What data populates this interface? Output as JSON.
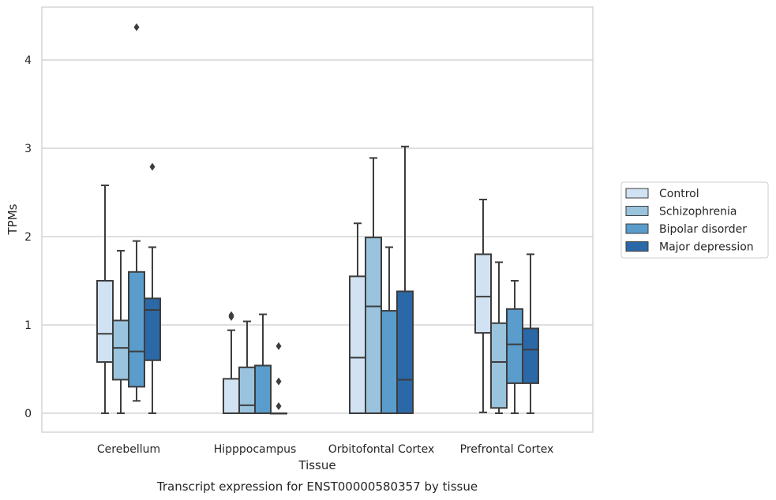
{
  "chart_data": {
    "type": "box",
    "title": "",
    "caption": "Transcript expression for ENST00000580357 by tissue",
    "xlabel": "Tissue",
    "ylabel": "TPMs",
    "ylim": [
      -0.2,
      4.6
    ],
    "yticks": [
      0,
      1,
      2,
      3,
      4
    ],
    "grid": "horizontal",
    "legend_position": "right",
    "categories": [
      "Cerebellum",
      "Hipppocampus",
      "Orbitofontal Cortex",
      "Prefrontal Cortex"
    ],
    "series": [
      {
        "name": "Control",
        "color": "#d1e2f2",
        "boxes": [
          {
            "whislo": 0.0,
            "q1": 0.58,
            "med": 0.9,
            "q3": 1.5,
            "whishi": 2.58,
            "fliers": []
          },
          {
            "whislo": 0.0,
            "q1": 0.0,
            "med": 0.0,
            "q3": 0.39,
            "whishi": 0.94,
            "fliers": [
              1.09,
              1.11
            ]
          },
          {
            "whislo": 0.0,
            "q1": 0.0,
            "med": 0.63,
            "q3": 1.55,
            "whishi": 2.15,
            "fliers": []
          },
          {
            "whislo": 0.01,
            "q1": 0.91,
            "med": 1.32,
            "q3": 1.8,
            "whishi": 2.42,
            "fliers": []
          }
        ]
      },
      {
        "name": "Schizophrenia",
        "color": "#9ac3dd",
        "boxes": [
          {
            "whislo": 0.0,
            "q1": 0.38,
            "med": 0.74,
            "q3": 1.05,
            "whishi": 1.84,
            "fliers": []
          },
          {
            "whislo": 0.0,
            "q1": 0.0,
            "med": 0.09,
            "q3": 0.52,
            "whishi": 1.04,
            "fliers": []
          },
          {
            "whislo": 0.0,
            "q1": 0.0,
            "med": 1.21,
            "q3": 1.99,
            "whishi": 2.89,
            "fliers": []
          },
          {
            "whislo": 0.0,
            "q1": 0.06,
            "med": 0.58,
            "q3": 1.02,
            "whishi": 1.71,
            "fliers": []
          }
        ]
      },
      {
        "name": "Bipolar disorder",
        "color": "#5a9ccb",
        "boxes": [
          {
            "whislo": 0.14,
            "q1": 0.3,
            "med": 0.7,
            "q3": 1.6,
            "whishi": 1.95,
            "fliers": [
              4.37
            ]
          },
          {
            "whislo": 0.0,
            "q1": 0.0,
            "med": 0.0,
            "q3": 0.54,
            "whishi": 1.12,
            "fliers": []
          },
          {
            "whislo": 0.0,
            "q1": 0.0,
            "med": 0.0,
            "q3": 1.16,
            "whishi": 1.88,
            "fliers": []
          },
          {
            "whislo": 0.0,
            "q1": 0.34,
            "med": 0.78,
            "q3": 1.18,
            "whishi": 1.5,
            "fliers": []
          }
        ]
      },
      {
        "name": "Major depression",
        "color": "#2b68a7",
        "boxes": [
          {
            "whislo": 0.0,
            "q1": 0.6,
            "med": 1.17,
            "q3": 1.3,
            "whishi": 1.88,
            "fliers": [
              2.79
            ]
          },
          {
            "whislo": 0.0,
            "q1": 0.0,
            "med": 0.0,
            "q3": 0.0,
            "whishi": 0.0,
            "fliers": [
              0.76,
              0.36,
              0.08
            ]
          },
          {
            "whislo": 0.0,
            "q1": 0.0,
            "med": 0.38,
            "q3": 1.38,
            "whishi": 3.02,
            "fliers": []
          },
          {
            "whislo": 0.0,
            "q1": 0.34,
            "med": 0.72,
            "q3": 0.96,
            "whishi": 1.8,
            "fliers": []
          }
        ]
      }
    ]
  }
}
